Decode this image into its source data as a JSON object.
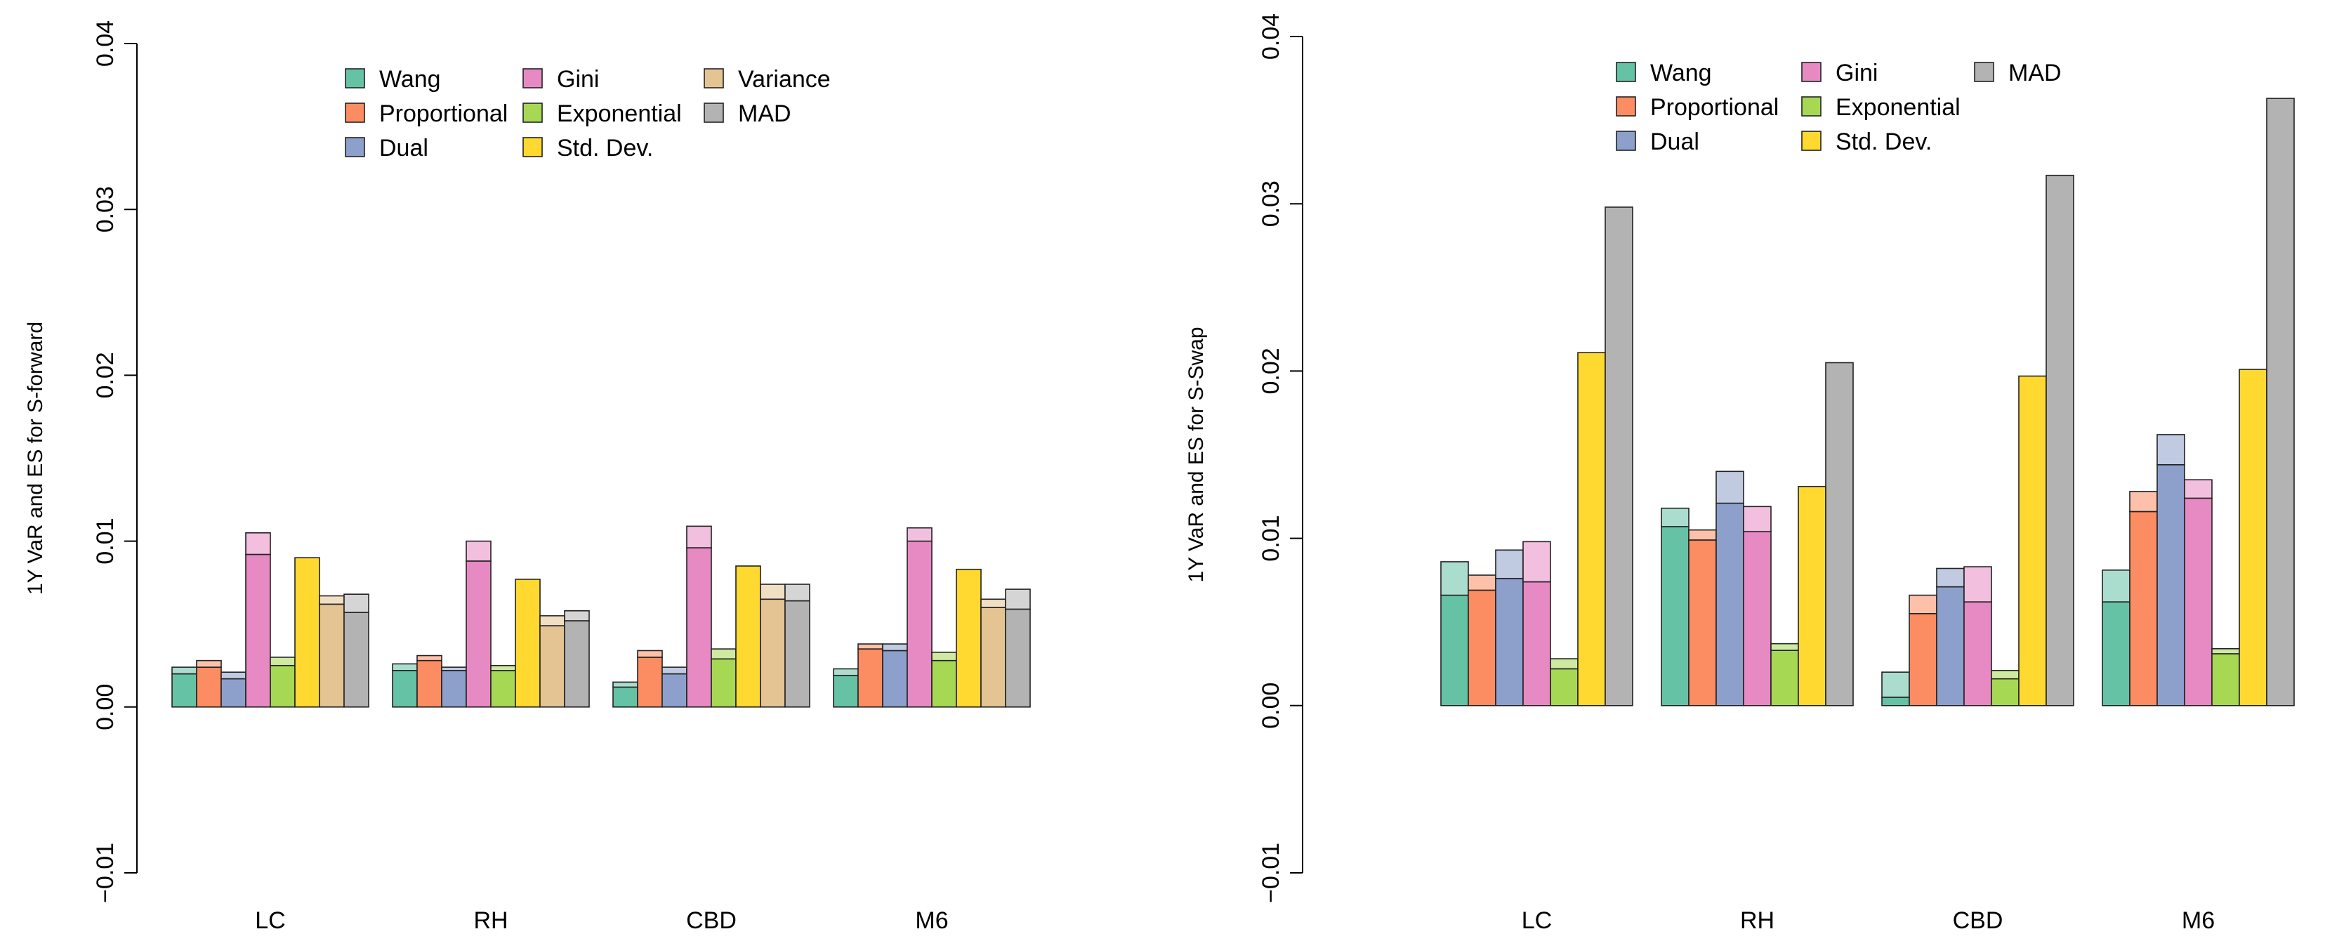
{
  "colors": {
    "Wang": "#66c2a5",
    "Proportional": "#fc8d62",
    "Dual": "#8da0cb",
    "Gini": "#e78ac3",
    "Exponential": "#a6d854",
    "Std. Dev.": "#ffd92f",
    "Variance": "#e5c494",
    "MAD": "#b3b3b3"
  },
  "chart_data": [
    {
      "type": "bar",
      "subtype": "grouped-stacked (VaR solid, ES lighter cap)",
      "title": "",
      "xlabel": "",
      "ylabel": "1Y VaR and ES for S-forward",
      "ylim": [
        -0.01,
        0.04
      ],
      "yticks": [
        -0.01,
        0.0,
        0.01,
        0.02,
        0.03,
        0.04
      ],
      "ytick_labels": [
        "−0.01",
        "0.00",
        "0.01",
        "0.02",
        "0.03",
        "0.04"
      ],
      "grid": false,
      "legend_position": "top",
      "legend_order": [
        "Wang",
        "Proportional",
        "Dual",
        "Gini",
        "Exponential",
        "Std. Dev.",
        "Variance",
        "MAD"
      ],
      "categories": [
        "LC",
        "RH",
        "CBD",
        "M6"
      ],
      "series": [
        {
          "name": "Wang",
          "var": [
            0.002,
            0.0022,
            0.0012,
            0.0019
          ],
          "es": [
            0.0024,
            0.0026,
            0.0015,
            0.0023
          ]
        },
        {
          "name": "Proportional",
          "var": [
            0.0024,
            0.0028,
            0.003,
            0.0035
          ],
          "es": [
            0.0028,
            0.0031,
            0.0034,
            0.0038
          ]
        },
        {
          "name": "Dual",
          "var": [
            0.0017,
            0.0022,
            0.002,
            0.0034
          ],
          "es": [
            0.0021,
            0.0024,
            0.0024,
            0.0038
          ]
        },
        {
          "name": "Gini",
          "var": [
            0.0092,
            0.0088,
            0.0096,
            0.01
          ],
          "es": [
            0.0105,
            0.01,
            0.0109,
            0.0108
          ]
        },
        {
          "name": "Exponential",
          "var": [
            0.0025,
            0.0022,
            0.0029,
            0.0028
          ],
          "es": [
            0.003,
            0.0025,
            0.0035,
            0.0033
          ]
        },
        {
          "name": "Std. Dev.",
          "var": [
            0.009,
            0.0077,
            0.0085,
            0.0083
          ],
          "es": [
            0.009,
            0.0077,
            0.0085,
            0.0083
          ]
        },
        {
          "name": "Variance",
          "var": [
            0.0062,
            0.0049,
            0.0065,
            0.006
          ],
          "es": [
            0.0067,
            0.0055,
            0.0074,
            0.0065
          ]
        },
        {
          "name": "MAD",
          "var": [
            0.0057,
            0.0052,
            0.0064,
            0.0059
          ],
          "es": [
            0.0068,
            0.0058,
            0.0074,
            0.0071
          ]
        }
      ]
    },
    {
      "type": "bar",
      "subtype": "grouped-stacked (VaR solid, ES lighter cap)",
      "title": "",
      "xlabel": "",
      "ylabel": "1Y VaR and ES for S-Swap",
      "ylim": [
        -0.01,
        0.04
      ],
      "yticks": [
        -0.01,
        0.0,
        0.01,
        0.02,
        0.03,
        0.04
      ],
      "ytick_labels": [
        "−0.01",
        "0.00",
        "0.01",
        "0.02",
        "0.03",
        "0.04"
      ],
      "grid": false,
      "legend_position": "top",
      "legend_order": [
        "Wang",
        "Proportional",
        "Dual",
        "Gini",
        "Exponential",
        "Std. Dev.",
        "MAD"
      ],
      "categories": [
        "LC",
        "RH",
        "CBD",
        "M6"
      ],
      "series": [
        {
          "name": "Wang",
          "var": [
            0.0066,
            0.0107,
            0.0005,
            0.0062
          ],
          "es": [
            0.0086,
            0.0118,
            0.002,
            0.0081
          ]
        },
        {
          "name": "Proportional",
          "var": [
            0.0069,
            0.0099,
            0.0055,
            0.0116
          ],
          "es": [
            0.0078,
            0.0105,
            0.0066,
            0.0128
          ]
        },
        {
          "name": "Dual",
          "var": [
            0.0076,
            0.0121,
            0.0071,
            0.0144
          ],
          "es": [
            0.0093,
            0.014,
            0.0082,
            0.0162
          ]
        },
        {
          "name": "Gini",
          "var": [
            0.0074,
            0.0104,
            0.0062,
            0.0124
          ],
          "es": [
            0.0098,
            0.0119,
            0.0083,
            0.0135
          ]
        },
        {
          "name": "Exponential",
          "var": [
            0.0022,
            0.0033,
            0.0016,
            0.0031
          ],
          "es": [
            0.0028,
            0.0037,
            0.0021,
            0.0034
          ]
        },
        {
          "name": "Std. Dev.",
          "var": [
            0.0211,
            0.0131,
            0.0197,
            0.0201
          ],
          "es": [
            0.0211,
            0.0131,
            0.0197,
            0.0201
          ]
        },
        {
          "name": "MAD",
          "var": [
            0.0298,
            0.0205,
            0.0317,
            0.0363
          ],
          "es": [
            0.0298,
            0.0205,
            0.0317,
            0.0363
          ]
        }
      ]
    }
  ]
}
